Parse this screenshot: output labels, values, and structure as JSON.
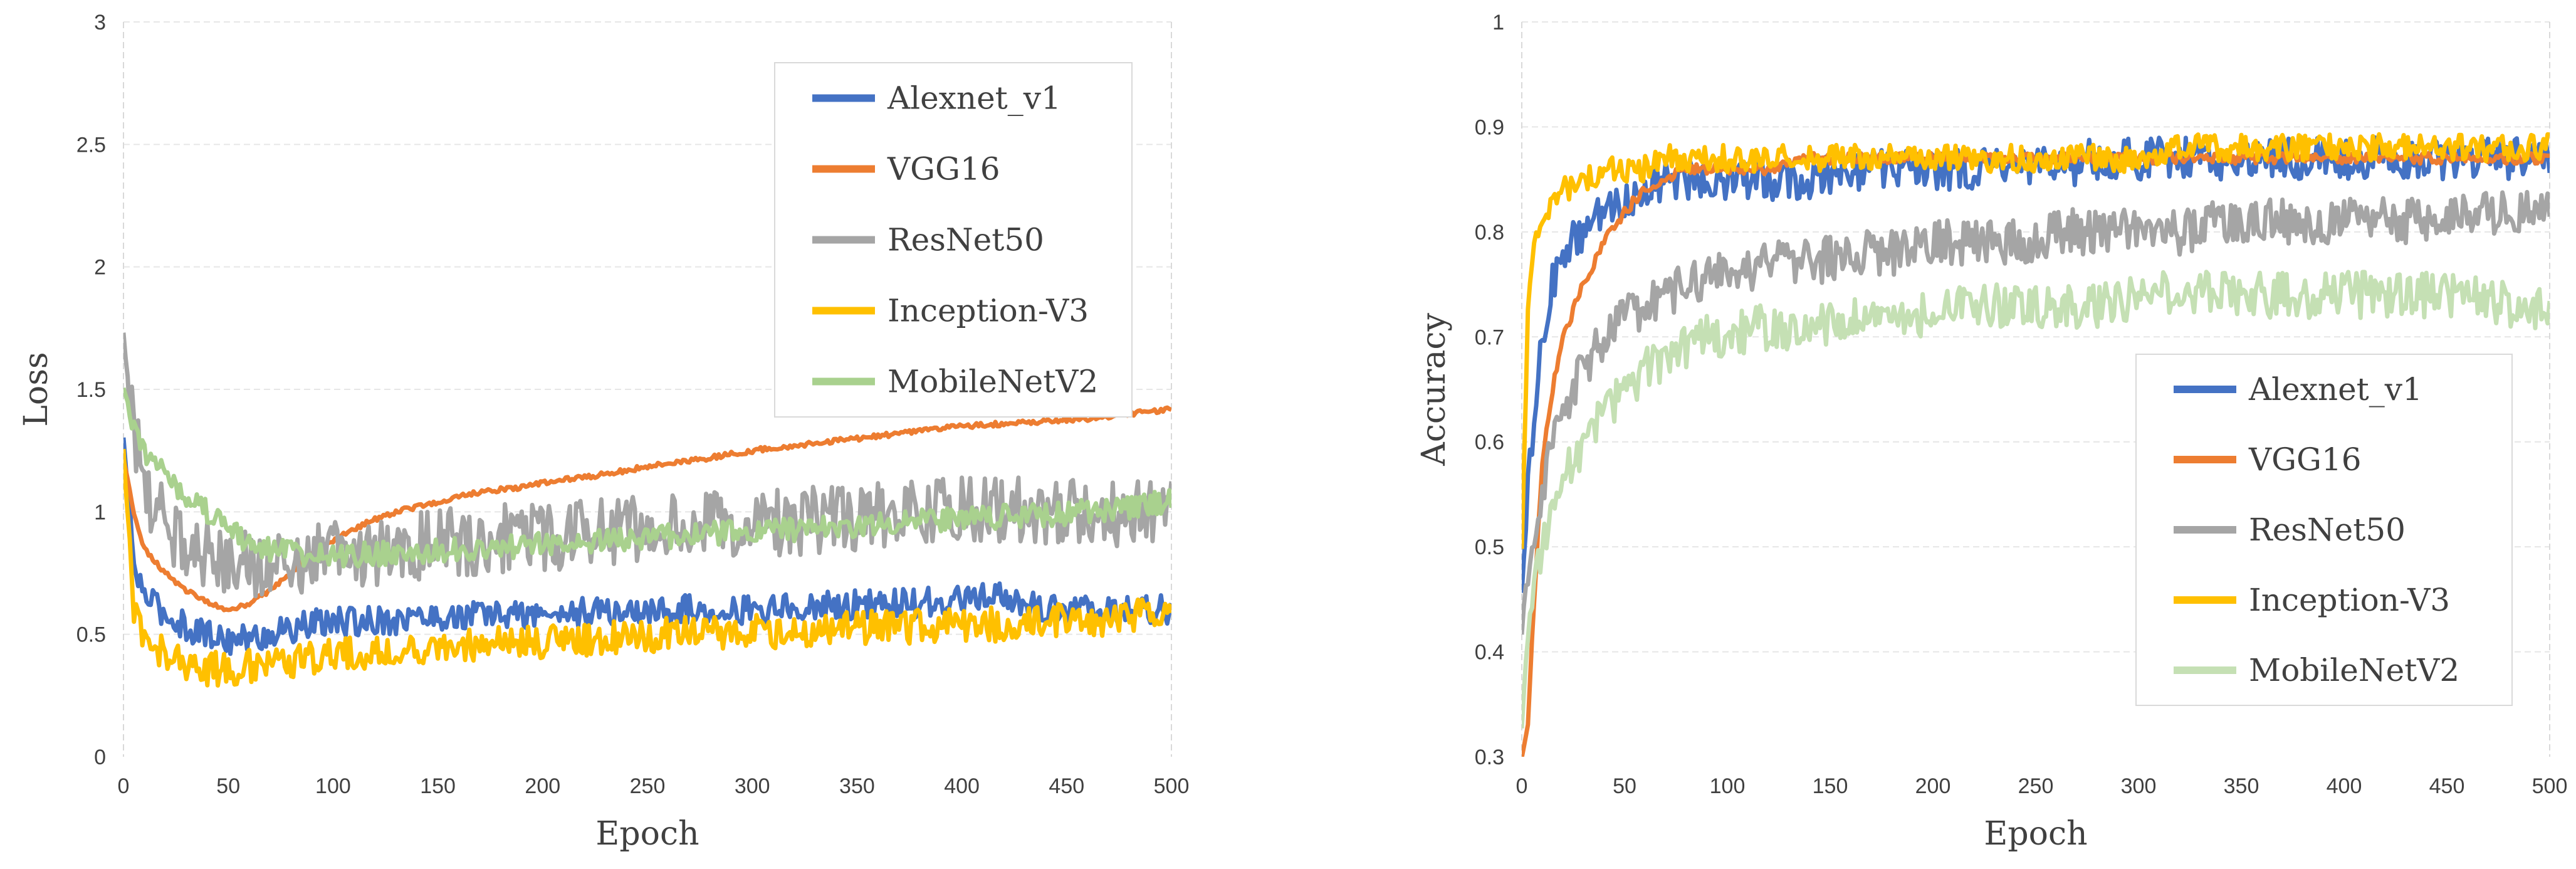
{
  "chart_data": [
    {
      "type": "line",
      "title": "",
      "xlabel": "Epoch",
      "ylabel": "Loss",
      "xlim": [
        0,
        500
      ],
      "ylim": [
        0,
        3
      ],
      "xticks": [
        "0",
        "50",
        "100",
        "150",
        "200",
        "250",
        "300",
        "350",
        "400",
        "450",
        "500"
      ],
      "yticks": [
        "0",
        "0.5",
        "1",
        "1.5",
        "2",
        "2.5",
        "3"
      ],
      "grid": true,
      "legend_position": "top-right",
      "series": [
        {
          "name": "Alexnet_v1",
          "color": "#4472C4",
          "x": [
            0,
            5,
            10,
            20,
            30,
            40,
            50,
            60,
            70,
            80,
            90,
            100,
            110,
            120,
            130,
            140,
            150,
            160,
            170,
            180,
            190,
            200,
            220,
            240,
            260,
            280,
            300,
            320,
            340,
            360,
            380,
            400,
            420,
            440,
            460,
            480,
            500
          ],
          "y": [
            1.3,
            0.78,
            0.66,
            0.58,
            0.53,
            0.5,
            0.48,
            0.48,
            0.5,
            0.52,
            0.54,
            0.55,
            0.55,
            0.56,
            0.56,
            0.57,
            0.57,
            0.57,
            0.58,
            0.58,
            0.58,
            0.58,
            0.59,
            0.59,
            0.6,
            0.6,
            0.6,
            0.61,
            0.62,
            0.62,
            0.63,
            0.64,
            0.65,
            0.6,
            0.6,
            0.6,
            0.6
          ],
          "noise": 0.06
        },
        {
          "name": "VGG16",
          "color": "#ED7D31",
          "x": [
            0,
            5,
            10,
            20,
            30,
            40,
            50,
            60,
            70,
            80,
            90,
            100,
            110,
            120,
            130,
            140,
            150,
            160,
            170,
            180,
            190,
            200,
            220,
            240,
            260,
            280,
            300,
            320,
            340,
            360,
            380,
            400,
            420,
            440,
            460,
            480,
            500
          ],
          "y": [
            1.22,
            1.0,
            0.85,
            0.75,
            0.68,
            0.63,
            0.6,
            0.62,
            0.68,
            0.75,
            0.83,
            0.88,
            0.93,
            0.97,
            1.0,
            1.02,
            1.04,
            1.06,
            1.08,
            1.09,
            1.1,
            1.12,
            1.14,
            1.17,
            1.2,
            1.22,
            1.25,
            1.27,
            1.29,
            1.31,
            1.33,
            1.35,
            1.36,
            1.37,
            1.38,
            1.4,
            1.42
          ],
          "noise": 0.01
        },
        {
          "name": "ResNet50",
          "color": "#A5A5A5",
          "x": [
            0,
            5,
            10,
            20,
            30,
            40,
            50,
            60,
            70,
            80,
            90,
            100,
            110,
            120,
            130,
            140,
            150,
            160,
            170,
            180,
            190,
            200,
            220,
            240,
            260,
            280,
            300,
            320,
            340,
            360,
            380,
            400,
            420,
            440,
            460,
            480,
            500
          ],
          "y": [
            1.72,
            1.35,
            1.1,
            0.95,
            0.87,
            0.83,
            0.8,
            0.79,
            0.79,
            0.8,
            0.81,
            0.82,
            0.83,
            0.84,
            0.85,
            0.86,
            0.87,
            0.88,
            0.88,
            0.89,
            0.9,
            0.9,
            0.91,
            0.92,
            0.93,
            0.94,
            0.95,
            0.96,
            0.97,
            0.98,
            0.99,
            1.0,
            1.0,
            1.0,
            1.0,
            1.0,
            1.0
          ],
          "noise": 0.14
        },
        {
          "name": "Inception-V3",
          "color": "#FFC000",
          "x": [
            0,
            5,
            10,
            20,
            30,
            40,
            50,
            60,
            70,
            80,
            90,
            100,
            110,
            120,
            130,
            140,
            150,
            160,
            170,
            180,
            190,
            200,
            220,
            240,
            260,
            280,
            300,
            320,
            340,
            360,
            380,
            400,
            420,
            440,
            460,
            480,
            500
          ],
          "y": [
            1.25,
            0.6,
            0.48,
            0.42,
            0.38,
            0.36,
            0.36,
            0.37,
            0.38,
            0.39,
            0.4,
            0.41,
            0.42,
            0.42,
            0.43,
            0.44,
            0.44,
            0.45,
            0.46,
            0.46,
            0.47,
            0.47,
            0.48,
            0.49,
            0.5,
            0.5,
            0.51,
            0.51,
            0.52,
            0.53,
            0.53,
            0.54,
            0.54,
            0.55,
            0.56,
            0.57,
            0.58
          ],
          "noise": 0.07
        },
        {
          "name": "MobileNetV2",
          "color": "#A9D18E",
          "x": [
            0,
            5,
            10,
            20,
            30,
            40,
            50,
            60,
            70,
            80,
            90,
            100,
            110,
            120,
            130,
            140,
            150,
            160,
            170,
            180,
            190,
            200,
            220,
            240,
            260,
            280,
            300,
            320,
            340,
            360,
            380,
            400,
            420,
            440,
            460,
            480,
            500
          ],
          "y": [
            1.5,
            1.35,
            1.25,
            1.15,
            1.07,
            1.0,
            0.93,
            0.88,
            0.85,
            0.83,
            0.82,
            0.82,
            0.82,
            0.83,
            0.83,
            0.84,
            0.84,
            0.85,
            0.85,
            0.86,
            0.86,
            0.87,
            0.88,
            0.89,
            0.9,
            0.91,
            0.92,
            0.93,
            0.94,
            0.95,
            0.96,
            0.97,
            0.98,
            0.99,
            1.0,
            1.02,
            1.05
          ],
          "noise": 0.05
        }
      ]
    },
    {
      "type": "line",
      "title": "",
      "xlabel": "Epoch",
      "ylabel": "Accuracy",
      "xlim": [
        0,
        500
      ],
      "ylim": [
        0.3,
        1
      ],
      "xticks": [
        "0",
        "50",
        "100",
        "150",
        "200",
        "250",
        "300",
        "350",
        "400",
        "450",
        "500"
      ],
      "yticks": [
        "0.3",
        "0.4",
        "0.5",
        "0.6",
        "0.7",
        "0.8",
        "0.9",
        "1"
      ],
      "grid": true,
      "legend_position": "center-right",
      "series": [
        {
          "name": "Alexnet_v1",
          "color": "#4472C4",
          "x": [
            0,
            3,
            6,
            10,
            15,
            20,
            30,
            40,
            50,
            60,
            70,
            80,
            90,
            100,
            120,
            140,
            160,
            180,
            200,
            220,
            240,
            260,
            280,
            300,
            320,
            340,
            360,
            380,
            400,
            420,
            440,
            460,
            480,
            500
          ],
          "y": [
            0.46,
            0.55,
            0.62,
            0.7,
            0.75,
            0.78,
            0.8,
            0.82,
            0.83,
            0.84,
            0.85,
            0.85,
            0.85,
            0.85,
            0.85,
            0.85,
            0.86,
            0.86,
            0.86,
            0.86,
            0.86,
            0.86,
            0.87,
            0.87,
            0.87,
            0.87,
            0.87,
            0.87,
            0.87,
            0.87,
            0.87,
            0.87,
            0.87,
            0.87
          ],
          "noise": 0.02
        },
        {
          "name": "VGG16",
          "color": "#ED7D31",
          "x": [
            0,
            3,
            6,
            10,
            15,
            20,
            30,
            40,
            50,
            60,
            70,
            80,
            90,
            100,
            120,
            140,
            160,
            180,
            200,
            220,
            240,
            260,
            280,
            300,
            320,
            340,
            360,
            380,
            400,
            420,
            440,
            460,
            480,
            500
          ],
          "y": [
            0.3,
            0.33,
            0.45,
            0.58,
            0.65,
            0.7,
            0.75,
            0.79,
            0.82,
            0.84,
            0.85,
            0.86,
            0.86,
            0.86,
            0.86,
            0.87,
            0.87,
            0.87,
            0.87,
            0.87,
            0.87,
            0.87,
            0.87,
            0.87,
            0.87,
            0.87,
            0.87,
            0.87,
            0.87,
            0.87,
            0.87,
            0.87,
            0.87,
            0.87
          ],
          "noise": 0.005
        },
        {
          "name": "ResNet50",
          "color": "#A5A5A5",
          "x": [
            0,
            3,
            6,
            10,
            15,
            20,
            30,
            40,
            50,
            60,
            70,
            80,
            90,
            100,
            120,
            140,
            160,
            180,
            200,
            220,
            240,
            260,
            280,
            300,
            320,
            340,
            360,
            380,
            400,
            420,
            440,
            460,
            480,
            500
          ],
          "y": [
            0.42,
            0.48,
            0.52,
            0.56,
            0.6,
            0.63,
            0.67,
            0.7,
            0.72,
            0.73,
            0.74,
            0.75,
            0.76,
            0.76,
            0.77,
            0.77,
            0.78,
            0.78,
            0.79,
            0.79,
            0.79,
            0.8,
            0.8,
            0.8,
            0.8,
            0.81,
            0.81,
            0.81,
            0.81,
            0.81,
            0.81,
            0.82,
            0.82,
            0.82
          ],
          "noise": 0.022
        },
        {
          "name": "Inception-V3",
          "color": "#FFC000",
          "x": [
            0,
            3,
            6,
            10,
            15,
            20,
            30,
            40,
            50,
            60,
            70,
            80,
            90,
            100,
            120,
            140,
            160,
            180,
            200,
            220,
            240,
            260,
            280,
            300,
            320,
            340,
            360,
            380,
            400,
            420,
            440,
            460,
            480,
            500
          ],
          "y": [
            0.5,
            0.72,
            0.78,
            0.81,
            0.83,
            0.84,
            0.85,
            0.86,
            0.86,
            0.86,
            0.87,
            0.87,
            0.87,
            0.87,
            0.87,
            0.87,
            0.87,
            0.87,
            0.87,
            0.87,
            0.87,
            0.87,
            0.87,
            0.87,
            0.88,
            0.88,
            0.88,
            0.88,
            0.88,
            0.88,
            0.88,
            0.88,
            0.88,
            0.88
          ],
          "noise": 0.013
        },
        {
          "name": "MobileNetV2",
          "color": "#C5E0B4",
          "x": [
            0,
            3,
            6,
            10,
            15,
            20,
            30,
            40,
            50,
            60,
            70,
            80,
            90,
            100,
            120,
            140,
            160,
            180,
            200,
            220,
            240,
            260,
            280,
            300,
            320,
            340,
            360,
            380,
            400,
            420,
            440,
            460,
            480,
            500
          ],
          "y": [
            0.33,
            0.42,
            0.46,
            0.5,
            0.53,
            0.56,
            0.6,
            0.63,
            0.65,
            0.67,
            0.68,
            0.69,
            0.7,
            0.7,
            0.71,
            0.71,
            0.72,
            0.72,
            0.72,
            0.73,
            0.73,
            0.73,
            0.73,
            0.74,
            0.74,
            0.74,
            0.74,
            0.74,
            0.74,
            0.74,
            0.74,
            0.74,
            0.73,
            0.73
          ],
          "noise": 0.022
        }
      ]
    }
  ]
}
